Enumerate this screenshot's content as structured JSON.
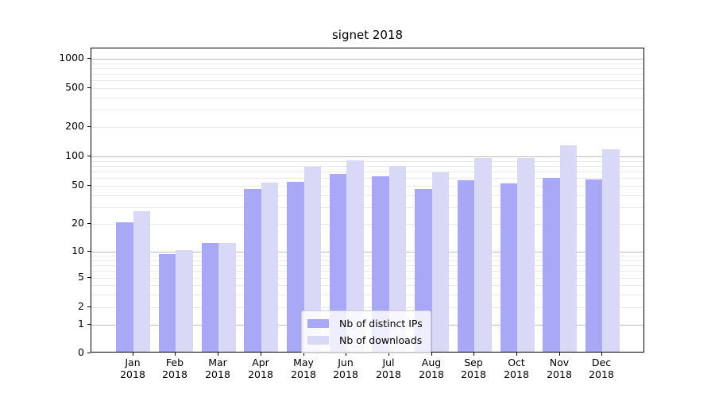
{
  "title": "signet 2018",
  "colors": {
    "distinct_ips": "#a8a8f7",
    "downloads": "#d9d9f7",
    "major_grid": "#bdbdbd",
    "minor_grid": "#e9e9e9",
    "axis": "#000000",
    "background": "#ffffff",
    "legend_border": "#cccccc"
  },
  "legend": {
    "items": [
      {
        "label": "Nb of distinct IPs",
        "color": "#a8a8f7"
      },
      {
        "label": "Nb of downloads",
        "color": "#d9d9f7"
      }
    ]
  },
  "chart_data": {
    "type": "bar",
    "title": "signet 2018",
    "categories": [
      "Jan 2018",
      "Feb 2018",
      "Mar 2018",
      "Apr 2018",
      "May 2018",
      "Jun 2018",
      "Jul 2018",
      "Aug 2018",
      "Sep 2018",
      "Oct 2018",
      "Nov 2018",
      "Dec 2018"
    ],
    "series": [
      {
        "name": "Nb of distinct IPs",
        "values": [
          20,
          9,
          12,
          45,
          53,
          64,
          60,
          45,
          55,
          51,
          58,
          56
        ]
      },
      {
        "name": "Nb of downloads",
        "values": [
          26,
          10,
          12,
          52,
          76,
          88,
          77,
          66,
          92,
          93,
          125,
          115
        ]
      }
    ],
    "xlabel": "",
    "ylabel": "",
    "yscale": "symlog",
    "yticks": [
      0,
      1,
      2,
      5,
      10,
      20,
      50,
      100,
      200,
      500,
      1000
    ],
    "ylim": [
      0,
      1200
    ],
    "grid": "both",
    "legend_position": "lower center"
  }
}
